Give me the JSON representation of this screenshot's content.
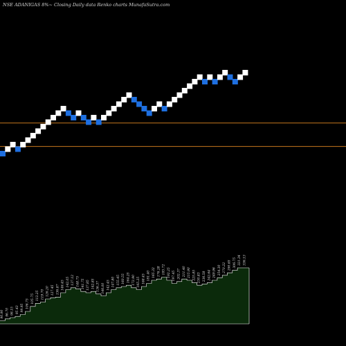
{
  "header": {
    "title": "NSE ADANIGAS 8%~   Closing Daily data  Renko  charts MunafaSutra.com"
  },
  "colors": {
    "background": "#000000",
    "up_brick": "#ffffff",
    "down_brick": "#1e6fe0",
    "reference_line": "#c8781e",
    "volume_fill": "#0b2a0b",
    "volume_line": "#ffffff"
  },
  "chart_data": {
    "type": "renko",
    "title": "NSE ADANIGAS 8%~   Closing Daily data  Renko  charts MunafaSutra.com",
    "bricks": [
      {
        "dir": "down",
        "level": 0
      },
      {
        "dir": "up",
        "level": 1
      },
      {
        "dir": "up",
        "level": 2
      },
      {
        "dir": "down",
        "level": 1
      },
      {
        "dir": "up",
        "level": 2
      },
      {
        "dir": "up",
        "level": 3
      },
      {
        "dir": "up",
        "level": 4
      },
      {
        "dir": "up",
        "level": 5
      },
      {
        "dir": "up",
        "level": 6
      },
      {
        "dir": "up",
        "level": 7
      },
      {
        "dir": "up",
        "level": 8
      },
      {
        "dir": "up",
        "level": 9
      },
      {
        "dir": "up",
        "level": 10
      },
      {
        "dir": "down",
        "level": 9
      },
      {
        "dir": "down",
        "level": 8
      },
      {
        "dir": "up",
        "level": 9
      },
      {
        "dir": "down",
        "level": 8
      },
      {
        "dir": "down",
        "level": 7
      },
      {
        "dir": "up",
        "level": 8
      },
      {
        "dir": "down",
        "level": 7
      },
      {
        "dir": "up",
        "level": 8
      },
      {
        "dir": "up",
        "level": 9
      },
      {
        "dir": "up",
        "level": 10
      },
      {
        "dir": "up",
        "level": 11
      },
      {
        "dir": "up",
        "level": 12
      },
      {
        "dir": "up",
        "level": 13
      },
      {
        "dir": "down",
        "level": 12
      },
      {
        "dir": "down",
        "level": 11
      },
      {
        "dir": "down",
        "level": 10
      },
      {
        "dir": "down",
        "level": 9
      },
      {
        "dir": "up",
        "level": 10
      },
      {
        "dir": "up",
        "level": 11
      },
      {
        "dir": "down",
        "level": 10
      },
      {
        "dir": "up",
        "level": 11
      },
      {
        "dir": "up",
        "level": 12
      },
      {
        "dir": "up",
        "level": 13
      },
      {
        "dir": "up",
        "level": 14
      },
      {
        "dir": "up",
        "level": 15
      },
      {
        "dir": "up",
        "level": 16
      },
      {
        "dir": "up",
        "level": 17
      },
      {
        "dir": "down",
        "level": 16
      },
      {
        "dir": "up",
        "level": 17
      },
      {
        "dir": "down",
        "level": 16
      },
      {
        "dir": "up",
        "level": 17
      },
      {
        "dir": "up",
        "level": 18
      },
      {
        "dir": "down",
        "level": 17
      },
      {
        "dir": "down",
        "level": 16
      },
      {
        "dir": "up",
        "level": 17
      },
      {
        "dir": "up",
        "level": 18
      }
    ],
    "brick_prices": [
      "90.90",
      "96.70",
      "98.15",
      "95.43",
      "99.95",
      "106.75",
      "105.75",
      "112.25",
      "119.70",
      "126.20",
      "127.45",
      "136.87",
      "146.45",
      "142.05",
      "137.12",
      "148.75",
      "141.75",
      "137.85",
      "142.85",
      "136.37",
      "146.00",
      "142.45",
      "147.80",
      "155.45",
      "160.55",
      "164.25",
      "172.90",
      "165.25",
      "168.45",
      "181.40",
      "165.32",
      "176.28",
      "185.72",
      "192.25",
      "197.45",
      "202.37",
      "211.40",
      "215.90",
      "225.85",
      "230.83",
      "236.58",
      "242.64",
      "249.96",
      "254.30",
      "270.22",
      "290.65",
      "306.75",
      "321.34",
      "336.13"
    ],
    "reference_levels": [
      6.8,
      1.6
    ],
    "volume_profile": [
      0.05,
      0.08,
      0.1,
      0.12,
      0.15,
      0.2,
      0.28,
      0.33,
      0.35,
      0.4,
      0.42,
      0.43,
      0.5,
      0.55,
      0.58,
      0.56,
      0.52,
      0.5,
      0.52,
      0.48,
      0.45,
      0.5,
      0.55,
      0.58,
      0.6,
      0.62,
      0.58,
      0.55,
      0.6,
      0.65,
      0.7,
      0.72,
      0.75,
      0.7,
      0.65,
      0.68,
      0.72,
      0.7,
      0.66,
      0.62,
      0.64,
      0.66,
      0.7,
      0.74,
      0.78,
      0.82,
      0.86,
      0.9,
      0.9
    ],
    "legend": "none",
    "grid": false
  }
}
